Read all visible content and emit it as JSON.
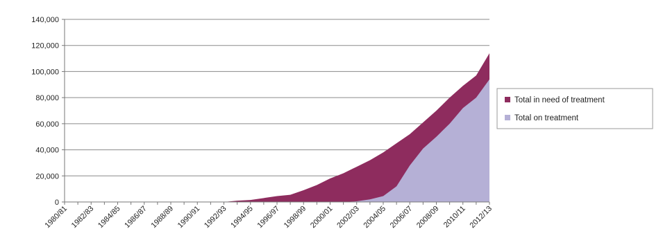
{
  "chart_data": {
    "type": "area",
    "stacking": "overlay",
    "x": [
      "1980/81",
      "1981/82",
      "1982/83",
      "1983/84",
      "1984/85",
      "1985/86",
      "1986/87",
      "1987/88",
      "1988/89",
      "1989/90",
      "1990/91",
      "1991/92",
      "1992/93",
      "1993/94",
      "1994/95",
      "1995/96",
      "1996/97",
      "1997/98",
      "1998/99",
      "1999/00",
      "2000/01",
      "2001/02",
      "2002/03",
      "2003/04",
      "2004/05",
      "2005/06",
      "2006/07",
      "2007/08",
      "2008/09",
      "2009/10",
      "2010/11",
      "2011/12",
      "2012/13"
    ],
    "x_tick_labels": [
      "1980/81",
      "1982/83",
      "1984/85",
      "1986/87",
      "1988/89",
      "1990/91",
      "1992/93",
      "1994/95",
      "1996/97",
      "1998/99",
      "2000/01",
      "2002/03",
      "2004/05",
      "2006/07",
      "2008/09",
      "2010/11",
      "2012/13"
    ],
    "series": [
      {
        "name": "Total in need of treatment",
        "color": "#8e2c5e",
        "values": [
          0,
          0,
          0,
          0,
          0,
          0,
          0,
          0,
          0,
          0,
          0,
          0,
          0,
          1000,
          1500,
          3000,
          4500,
          5500,
          9000,
          13000,
          18000,
          22000,
          27000,
          32000,
          38000,
          45000,
          52000,
          61000,
          70000,
          80000,
          89000,
          97000,
          114000
        ]
      },
      {
        "name": "Total on treatment",
        "color": "#b5b0d6",
        "values": [
          0,
          0,
          0,
          0,
          0,
          0,
          0,
          0,
          0,
          0,
          0,
          0,
          0,
          0,
          0,
          0,
          0,
          0,
          0,
          0,
          0,
          0,
          500,
          2000,
          4500,
          12000,
          28000,
          41000,
          50000,
          60000,
          72000,
          80000,
          94000
        ]
      }
    ],
    "y_ticks": [
      "0",
      "20,000",
      "40,000",
      "60,000",
      "80,000",
      "100,000",
      "120,000",
      "140,000"
    ],
    "ylim": [
      0,
      140000
    ],
    "grid": "horizontal",
    "legend_position": "right",
    "title": "",
    "xlabel": "",
    "ylabel": ""
  }
}
